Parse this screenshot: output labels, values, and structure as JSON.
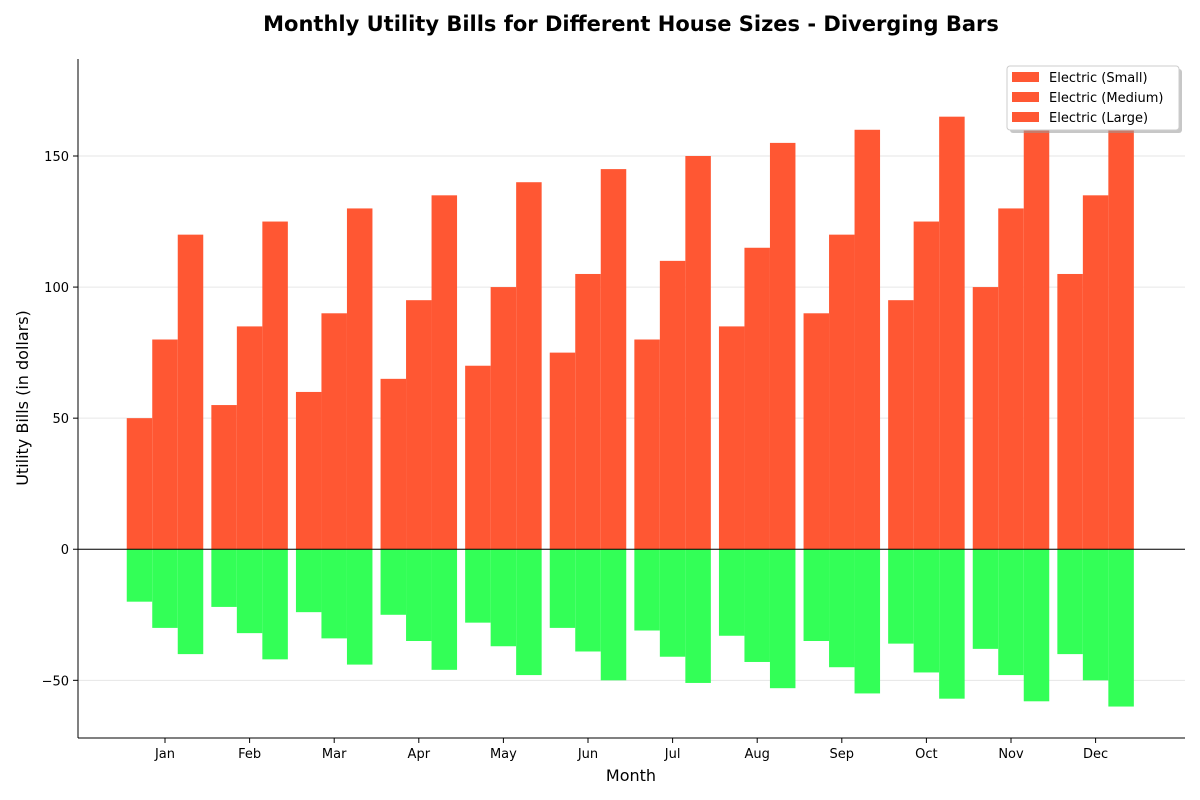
{
  "chart_data": {
    "type": "bar",
    "title": "Monthly Utility Bills for Different House Sizes - Diverging Bars",
    "xlabel": "Month",
    "ylabel": "Utility Bills (in dollars)",
    "categories": [
      "Jan",
      "Feb",
      "Mar",
      "Apr",
      "May",
      "Jun",
      "Jul",
      "Aug",
      "Sep",
      "Oct",
      "Nov",
      "Dec"
    ],
    "ylim": [
      -72,
      187
    ],
    "yticks": [
      -50,
      0,
      50,
      100,
      150
    ],
    "grid": "horizontal",
    "legend_position": "top-right",
    "colors": {
      "positive": "#FF5733",
      "negative": "#33FF57"
    },
    "series": [
      {
        "name": "Electric (Small)",
        "values": [
          50,
          55,
          60,
          65,
          70,
          75,
          80,
          85,
          90,
          95,
          100,
          105
        ],
        "negative_values": [
          -20,
          -22,
          -24,
          -25,
          -28,
          -30,
          -31,
          -33,
          -35,
          -36,
          -38,
          -40
        ]
      },
      {
        "name": "Electric (Medium)",
        "values": [
          80,
          85,
          90,
          95,
          100,
          105,
          110,
          115,
          120,
          125,
          130,
          135
        ],
        "negative_values": [
          -30,
          -32,
          -34,
          -35,
          -37,
          -39,
          -41,
          -43,
          -45,
          -47,
          -48,
          -50
        ]
      },
      {
        "name": "Electric (Large)",
        "values": [
          120,
          125,
          130,
          135,
          140,
          145,
          150,
          155,
          160,
          165,
          170,
          175
        ],
        "negative_values": [
          -40,
          -42,
          -44,
          -46,
          -48,
          -50,
          -51,
          -53,
          -55,
          -57,
          -58,
          -60
        ]
      }
    ]
  }
}
